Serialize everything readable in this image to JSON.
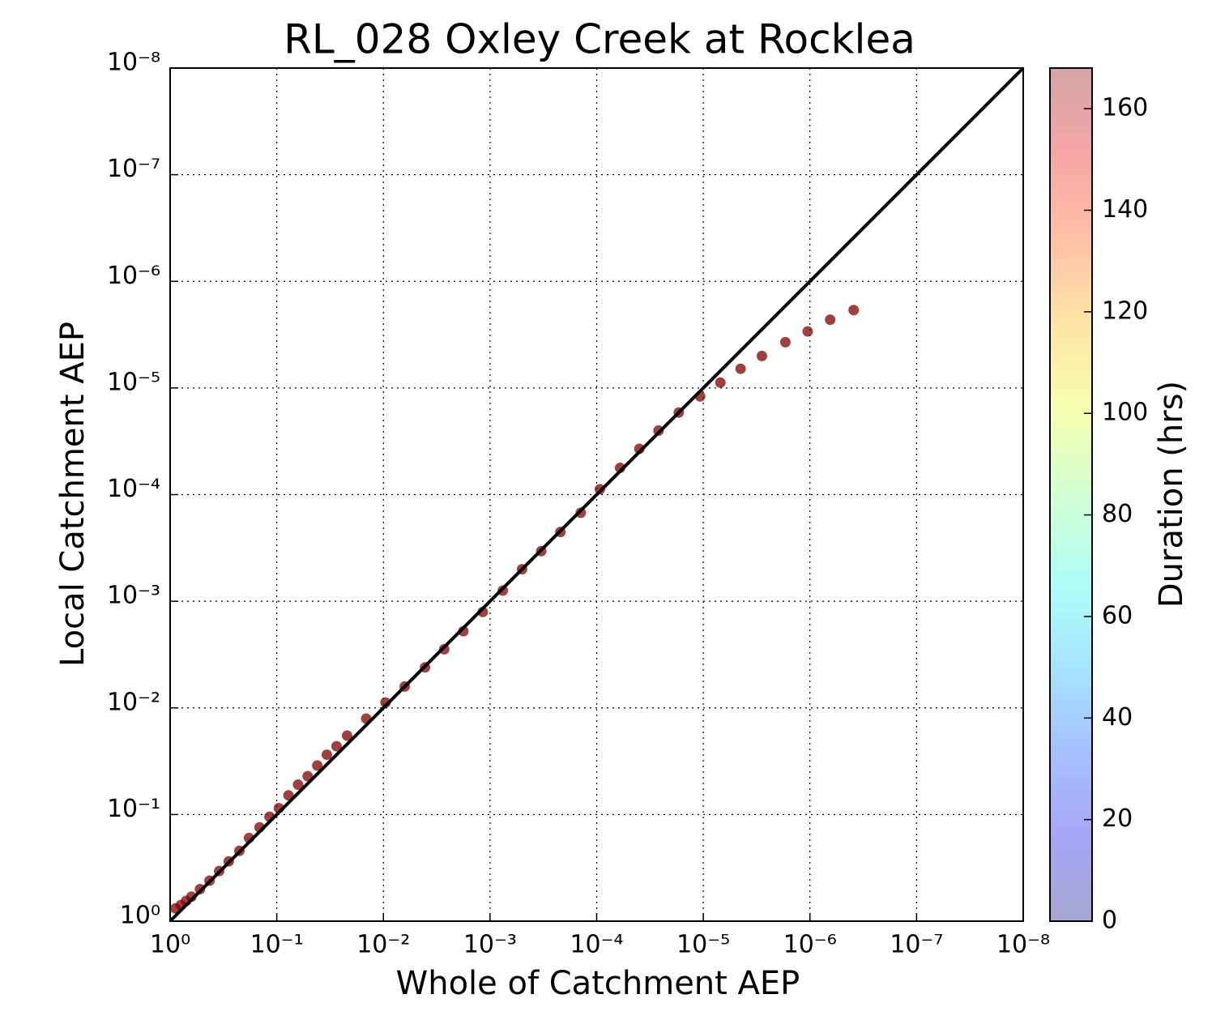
{
  "chart_data": {
    "type": "scatter",
    "title": "RL_028 Oxley Creek at Rocklea",
    "x_label": "Whole of Catchment AEP",
    "y_label": "Local Catchment AEP",
    "colorbar_label": "Duration (hrs)",
    "x_log": true,
    "y_log": true,
    "grid": true,
    "xlim": [
      1,
      1e-08
    ],
    "ylim": [
      1,
      1e-08
    ],
    "xticks": [
      {
        "value": 1,
        "label": "10⁰"
      },
      {
        "value": 0.1,
        "label": "10⁻¹"
      },
      {
        "value": 0.01,
        "label": "10⁻²"
      },
      {
        "value": 0.001,
        "label": "10⁻³"
      },
      {
        "value": 0.0001,
        "label": "10⁻⁴"
      },
      {
        "value": 1e-05,
        "label": "10⁻⁵"
      },
      {
        "value": 1e-06,
        "label": "10⁻⁶"
      },
      {
        "value": 1e-07,
        "label": "10⁻⁷"
      },
      {
        "value": 1e-08,
        "label": "10⁻⁸"
      }
    ],
    "yticks": [
      {
        "value": 1,
        "label": "10⁰"
      },
      {
        "value": 0.1,
        "label": "10⁻¹"
      },
      {
        "value": 0.01,
        "label": "10⁻²"
      },
      {
        "value": 0.001,
        "label": "10⁻³"
      },
      {
        "value": 0.0001,
        "label": "10⁻⁴"
      },
      {
        "value": 1e-05,
        "label": "10⁻⁵"
      },
      {
        "value": 1e-06,
        "label": "10⁻⁶"
      },
      {
        "value": 1e-07,
        "label": "10⁻⁷"
      },
      {
        "value": 1e-08,
        "label": "10⁻⁸"
      }
    ],
    "clim": [
      0,
      168
    ],
    "cticks": [
      0,
      20,
      40,
      60,
      80,
      100,
      120,
      140,
      160
    ],
    "reference_line": {
      "x": [
        1,
        1e-08
      ],
      "y": [
        1,
        1e-08
      ],
      "color": "#000000"
    },
    "x": [
      0.891,
      0.794,
      0.708,
      0.631,
      0.525,
      0.427,
      0.347,
      0.282,
      0.224,
      0.182,
      0.145,
      0.117,
      0.0955,
      0.0776,
      0.0631,
      0.0513,
      0.0417,
      0.0339,
      0.0275,
      0.0219,
      0.0145,
      0.00955,
      0.00631,
      0.00407,
      0.00269,
      0.00178,
      0.00117,
      0.000759,
      0.000501,
      0.000331,
      0.000219,
      0.000141,
      9.33e-05,
      6.03e-05,
      3.98e-05,
      2.63e-05,
      1.7e-05,
      1.07e-05,
      6.92e-06,
      4.47e-06,
      2.82e-06,
      1.7e-06,
      1.05e-06,
      6.46e-07,
      3.89e-07
    ],
    "y": [
      0.759,
      0.708,
      0.646,
      0.589,
      0.501,
      0.417,
      0.339,
      0.275,
      0.219,
      0.166,
      0.132,
      0.105,
      0.0871,
      0.0661,
      0.0525,
      0.0437,
      0.0347,
      0.0275,
      0.0229,
      0.0182,
      0.0126,
      0.00891,
      0.00631,
      0.00417,
      0.00282,
      0.00191,
      0.00126,
      0.000794,
      0.000501,
      0.000339,
      0.000224,
      0.000148,
      8.91e-05,
      5.62e-05,
      3.72e-05,
      2.51e-05,
      1.7e-05,
      1.2e-05,
      8.91e-06,
      6.61e-06,
      5.01e-06,
      3.72e-06,
      2.95e-06,
      2.29e-06,
      1.86e-06
    ],
    "duration": [
      168,
      168,
      168,
      168,
      168,
      168,
      168,
      168,
      168,
      168,
      168,
      168,
      168,
      168,
      168,
      168,
      168,
      168,
      168,
      168,
      168,
      168,
      168,
      168,
      168,
      168,
      168,
      168,
      168,
      168,
      168,
      168,
      168,
      168,
      168,
      168,
      168,
      168,
      168,
      168,
      168,
      168,
      168,
      168,
      168
    ]
  }
}
